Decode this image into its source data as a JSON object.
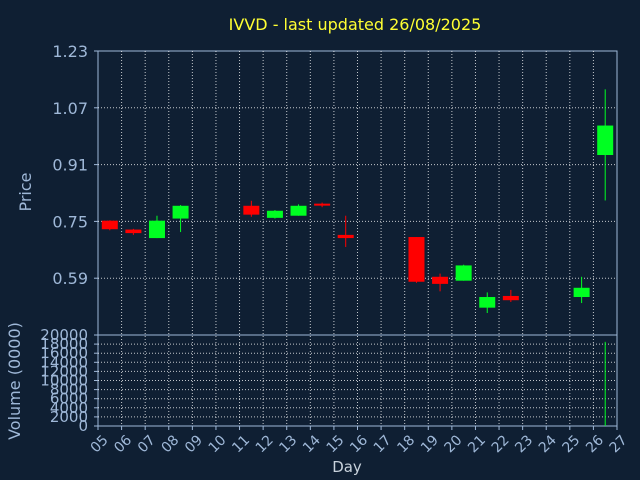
{
  "chart_data": {
    "type": "candlestick",
    "title": "IVVD - last updated 26/08/2025",
    "xlabel": "Day",
    "ylabel_price": "Price",
    "ylabel_volume": "Volume (0000)",
    "x_ticks": [
      "05",
      "06",
      "07",
      "08",
      "09",
      "10",
      "11",
      "12",
      "13",
      "14",
      "15",
      "16",
      "17",
      "18",
      "19",
      "20",
      "21",
      "22",
      "23",
      "24",
      "25",
      "26",
      "27"
    ],
    "price_ticks": [
      "1.23",
      "1.07",
      "0.91",
      "0.75",
      "0.59"
    ],
    "price_range": [
      0.43,
      1.23
    ],
    "volume_ticks": [
      "20000",
      "18000",
      "16000",
      "14000",
      "12000",
      "10000",
      "8000",
      "6000",
      "4000",
      "2000",
      "0"
    ],
    "volume_range": [
      0,
      20000
    ],
    "grid": true,
    "colors": {
      "up": "#00ff22",
      "down": "#ff0000",
      "background": "#0f1f33",
      "frame": "#9fb8d8",
      "grid": "#ffffff",
      "title": "#ffff33"
    },
    "candles": [
      {
        "day": "05",
        "open": 0.752,
        "high": 0.753,
        "low": 0.725,
        "close": 0.728,
        "volume": 0
      },
      {
        "day": "06",
        "open": 0.727,
        "high": 0.729,
        "low": 0.712,
        "close": 0.717,
        "volume": 0
      },
      {
        "day": "07",
        "open": 0.703,
        "high": 0.766,
        "low": 0.703,
        "close": 0.752,
        "volume": 0
      },
      {
        "day": "08",
        "open": 0.758,
        "high": 0.796,
        "low": 0.72,
        "close": 0.794,
        "volume": 0
      },
      {
        "day": "11",
        "open": 0.794,
        "high": 0.808,
        "low": 0.763,
        "close": 0.769,
        "volume": 0
      },
      {
        "day": "12",
        "open": 0.76,
        "high": 0.782,
        "low": 0.758,
        "close": 0.78,
        "volume": 0
      },
      {
        "day": "13",
        "open": 0.766,
        "high": 0.798,
        "low": 0.766,
        "close": 0.794,
        "volume": 0
      },
      {
        "day": "14",
        "open": 0.8,
        "high": 0.803,
        "low": 0.79,
        "close": 0.797,
        "volume": 0
      },
      {
        "day": "15",
        "open": 0.712,
        "high": 0.766,
        "low": 0.678,
        "close": 0.703,
        "volume": 0
      },
      {
        "day": "18",
        "open": 0.706,
        "high": 0.706,
        "low": 0.577,
        "close": 0.58,
        "volume": 0
      },
      {
        "day": "19",
        "open": 0.594,
        "high": 0.603,
        "low": 0.553,
        "close": 0.574,
        "volume": 0
      },
      {
        "day": "20",
        "open": 0.583,
        "high": 0.628,
        "low": 0.583,
        "close": 0.626,
        "volume": 0
      },
      {
        "day": "21",
        "open": 0.507,
        "high": 0.55,
        "low": 0.492,
        "close": 0.537,
        "volume": 0
      },
      {
        "day": "22",
        "open": 0.54,
        "high": 0.557,
        "low": 0.523,
        "close": 0.528,
        "volume": 0
      },
      {
        "day": "25",
        "open": 0.537,
        "high": 0.594,
        "low": 0.52,
        "close": 0.563,
        "volume": 0
      },
      {
        "day": "26",
        "open": 0.937,
        "high": 1.122,
        "low": 0.809,
        "close": 1.02,
        "volume": 18500
      }
    ]
  }
}
